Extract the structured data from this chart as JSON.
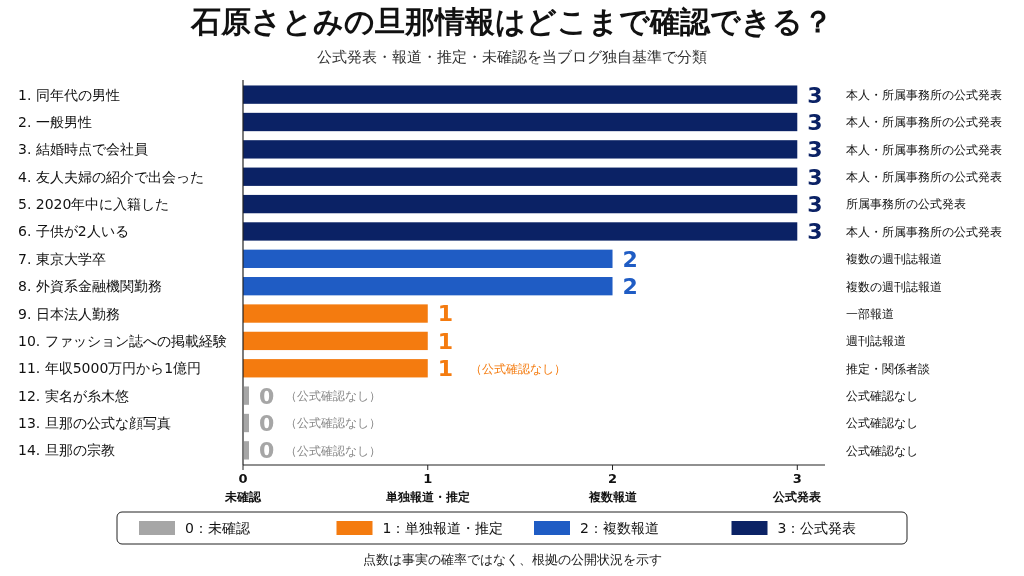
{
  "chart_data": {
    "type": "bar",
    "orientation": "horizontal",
    "title": "石原さとみの旦那情報はどこまで確認できる？",
    "subtitle": "公式発表・報道・推定・未確認を当ブログ独自基準で分類",
    "categories": [
      "1. 同年代の男性",
      "2. 一般男性",
      "3. 結婚時点で会社員",
      "4. 友人夫婦の紹介で出会った",
      "5. 2020年中に入籍した",
      "6. 子供が2人いる",
      "7. 東京大学卒",
      "8. 外資系金融機関勤務",
      "9. 日本法人勤務",
      "10. ファッション誌への掲載経験",
      "11. 年収5000万円から1億円",
      "12. 実名が糸木悠",
      "13. 旦那の公式な顔写真",
      "14. 旦那の宗教"
    ],
    "series": [
      {
        "name": "0：未確認",
        "color": "#a6a6a6",
        "values": [
          null,
          null,
          null,
          null,
          null,
          null,
          null,
          null,
          null,
          null,
          null,
          0,
          0,
          0
        ]
      },
      {
        "name": "1：単独報道・推定",
        "color": "#f47b0f",
        "values": [
          null,
          null,
          null,
          null,
          null,
          null,
          null,
          null,
          1,
          1,
          1,
          null,
          null,
          null
        ]
      },
      {
        "name": "2：複数報道",
        "color": "#1f5cc4",
        "values": [
          null,
          null,
          null,
          null,
          null,
          null,
          2,
          2,
          null,
          null,
          null,
          null,
          null,
          null
        ]
      },
      {
        "name": "3：公式発表",
        "color": "#0b2265",
        "values": [
          3,
          3,
          3,
          3,
          3,
          3,
          null,
          null,
          null,
          null,
          null,
          null,
          null,
          null
        ]
      }
    ],
    "xlim": [
      0,
      3.15
    ],
    "xticks": [
      {
        "value": 0,
        "label": "0\n未確認"
      },
      {
        "value": 1,
        "label": "1\n単独報道・推定"
      },
      {
        "value": 2,
        "label": "2\n複数報道"
      },
      {
        "value": 3,
        "label": "3\n公式発表"
      }
    ],
    "data_labels": true,
    "legend": "bottom",
    "annotations": [
      "本人・所属事務所の公式発表",
      "本人・所属事務所の公式発表",
      "本人・所属事務所の公式発表",
      "本人・所属事務所の公式発表",
      "所属事務所の公式発表",
      "本人・所属事務所の公式発表",
      "複数の週刊誌報道",
      "複数の週刊誌報道",
      "一部報道",
      "週刊誌報道",
      "推定・関係者談",
      "公式確認なし",
      "公式確認なし",
      "公式確認なし",
      "（公式確認なし）",
      "（公式確認なし）",
      "（公式確認なし）",
      "（公式確認なし）",
      "点数は事実の確率ではなく、根拠の公開状況を示す"
    ]
  }
}
